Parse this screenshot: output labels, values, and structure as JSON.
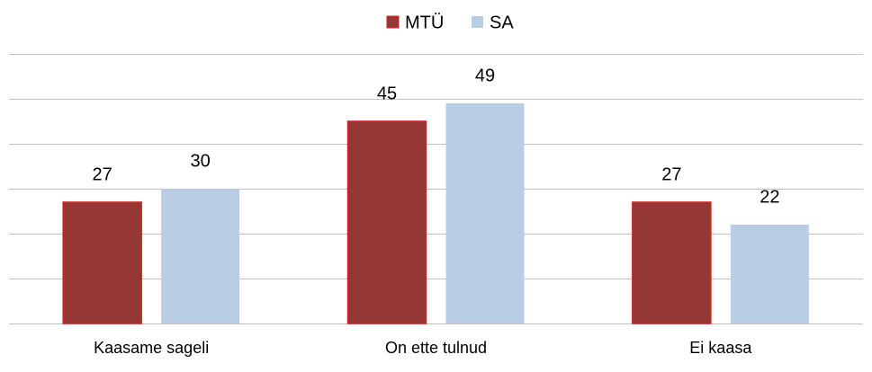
{
  "chart_data": {
    "type": "bar",
    "categories": [
      "Kaasame sageli",
      "On ette tulnud",
      "Ei kaasa"
    ],
    "series": [
      {
        "name": "MTÜ",
        "color": "#953735",
        "values": [
          27,
          45,
          27
        ]
      },
      {
        "name": "SA",
        "color": "#b9cde5",
        "values": [
          30,
          49,
          22
        ]
      }
    ],
    "ylim": [
      0,
      60
    ],
    "yticks": [
      0,
      10,
      20,
      30,
      40,
      50,
      60
    ],
    "grid": true,
    "legend": "top"
  }
}
